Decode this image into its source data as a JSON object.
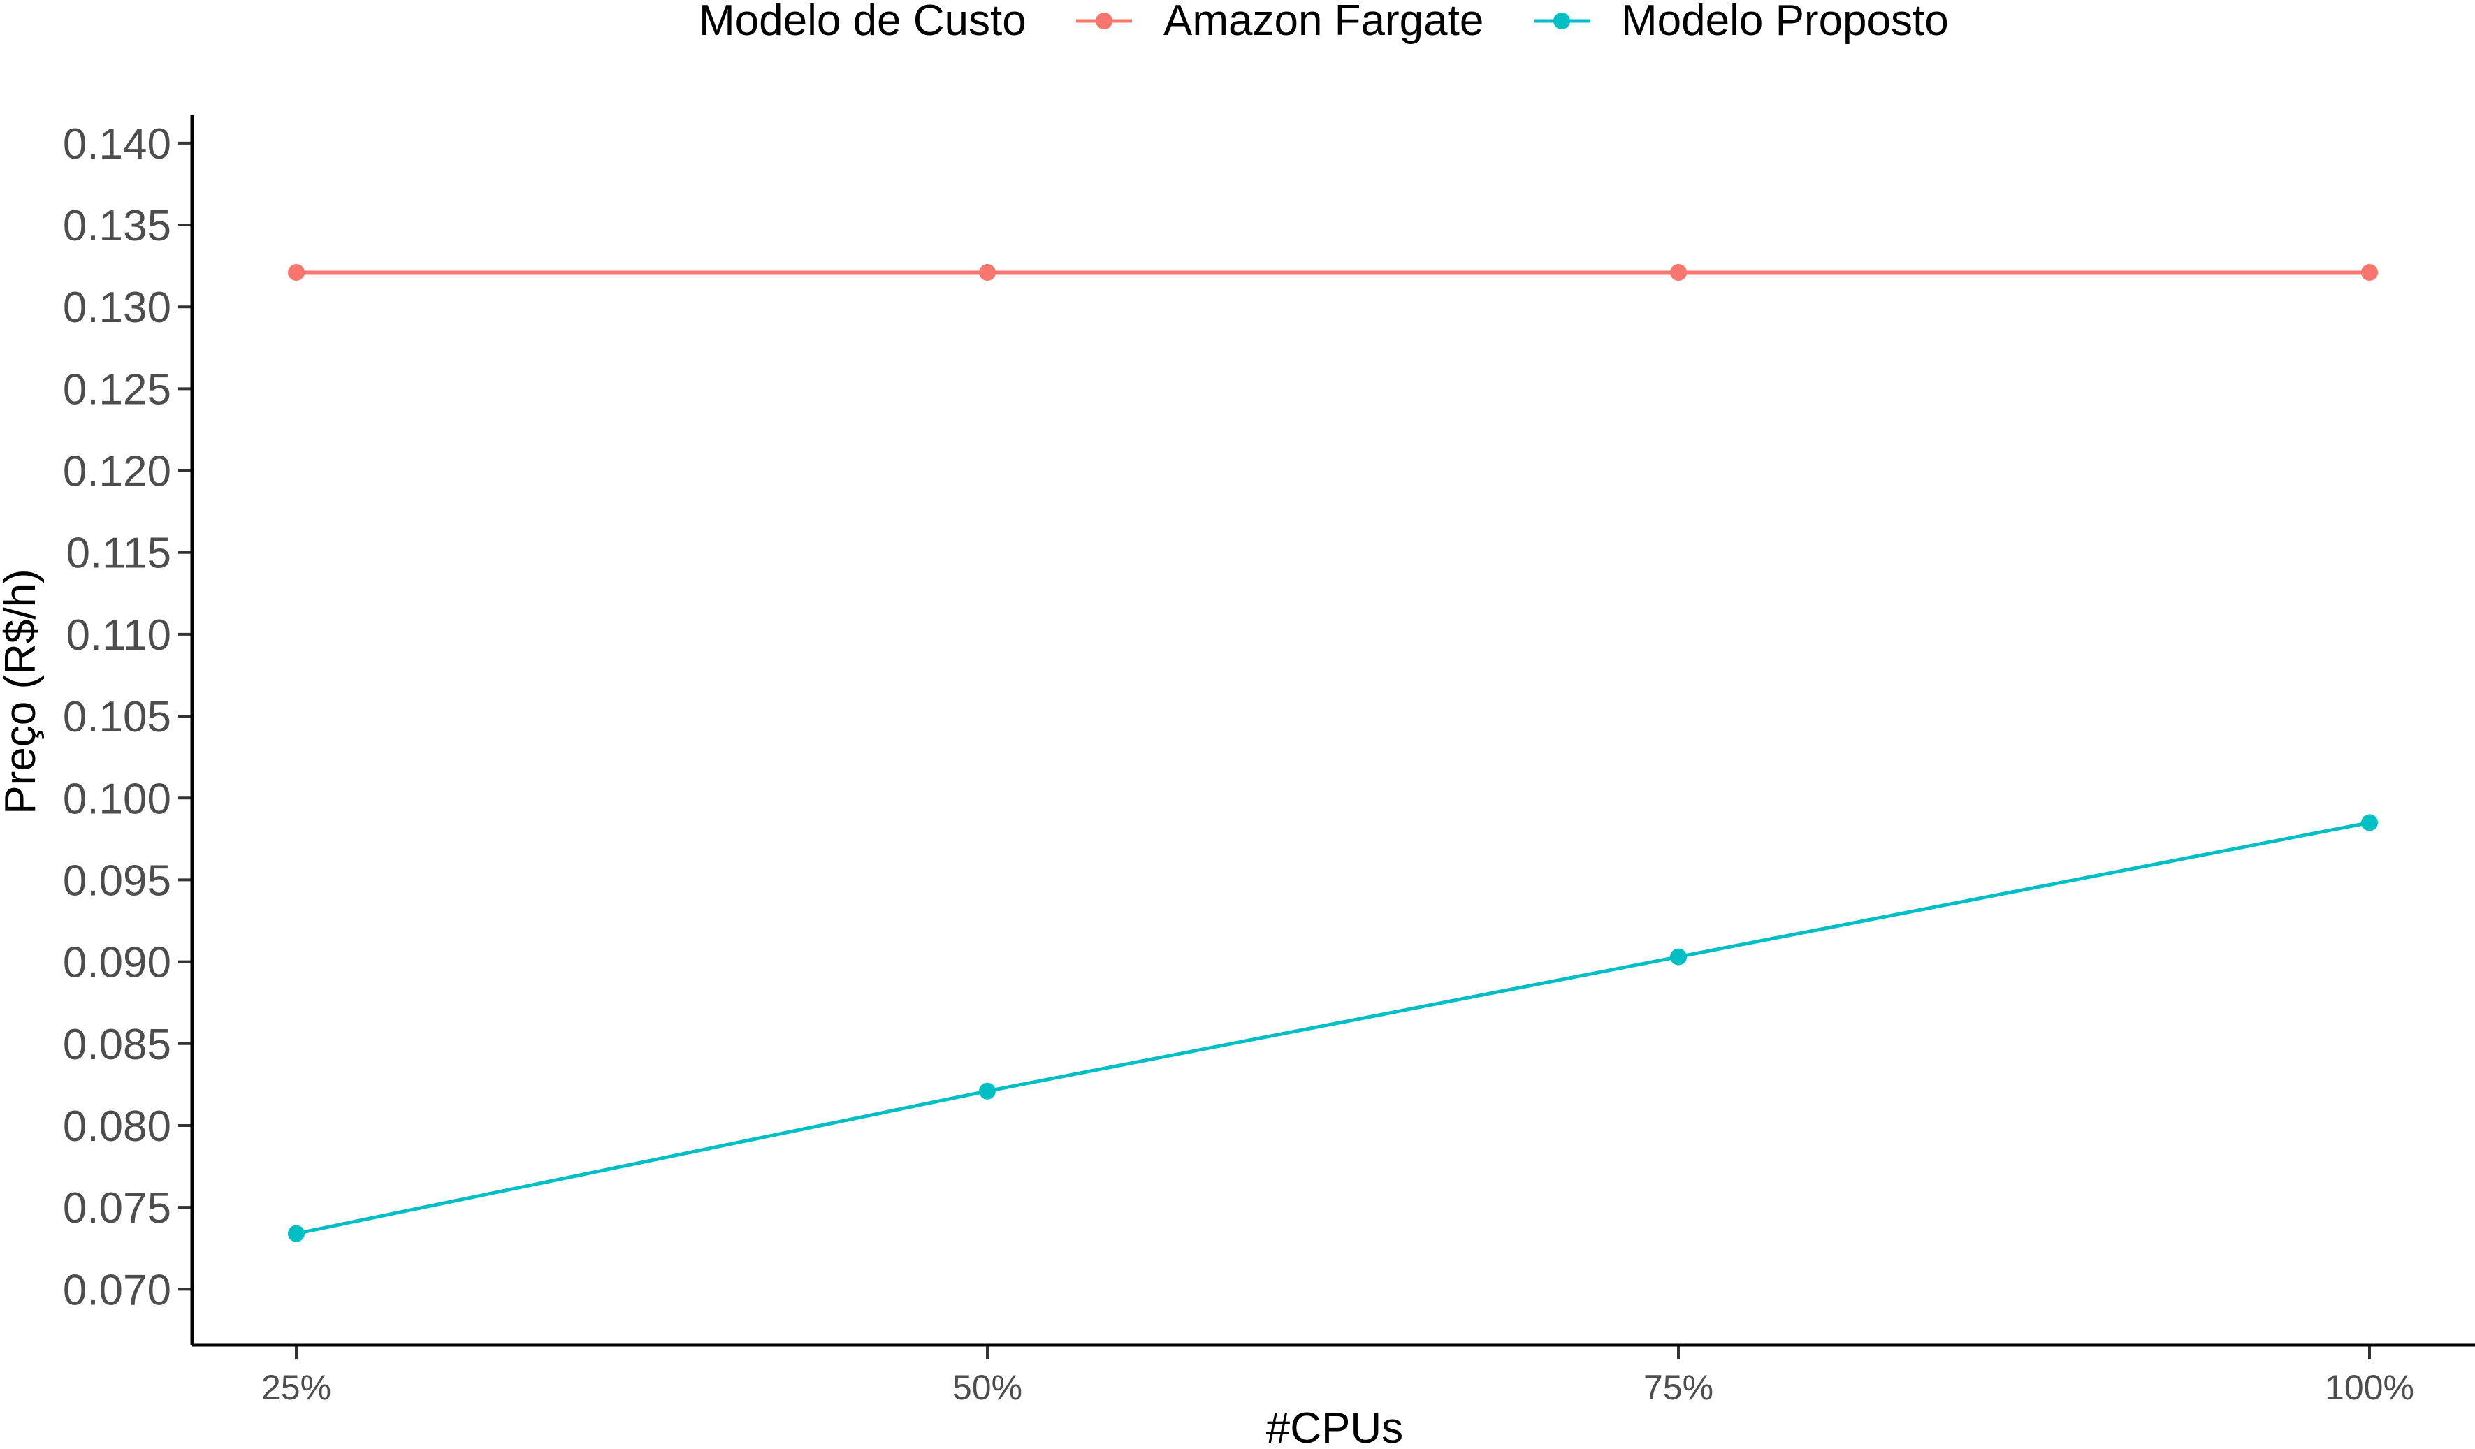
{
  "chart_data": {
    "type": "line",
    "title": "",
    "xlabel": "#CPUs",
    "ylabel": "Preço (R$/h)",
    "categories": [
      "25%",
      "50%",
      "75%",
      "100%"
    ],
    "y_ticks": [
      "0.070",
      "0.075",
      "0.080",
      "0.085",
      "0.090",
      "0.095",
      "0.100",
      "0.105",
      "0.110",
      "0.115",
      "0.120",
      "0.125",
      "0.130",
      "0.135",
      "0.140"
    ],
    "ylim": [
      0.0666,
      0.1417
    ],
    "grid": false,
    "legend": {
      "title": "Modelo de Custo",
      "position": "top"
    },
    "series": [
      {
        "name": "Amazon Fargate",
        "color": "#F8766D",
        "values": [
          0.1321,
          0.1321,
          0.1321,
          0.1321
        ]
      },
      {
        "name": "Modelo Proposto",
        "color": "#00BFC4",
        "values": [
          0.0734,
          0.0821,
          0.0903,
          0.0985
        ]
      }
    ]
  }
}
